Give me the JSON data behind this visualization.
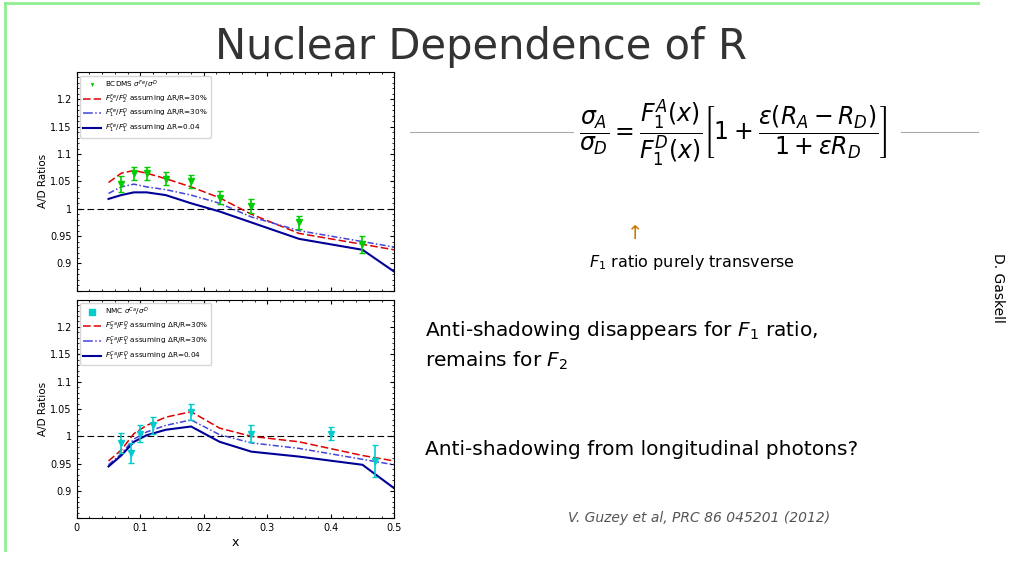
{
  "title": "Nuclear Dependence of R",
  "title_fontsize": 30,
  "background_color": "#ffffff",
  "border_color": "#90ee90",
  "bottom_bar_color": "#c8732a",
  "side_label": "D. Gaskell",
  "top_panel": {
    "ylabel": "A/D Ratios",
    "ylim": [
      0.85,
      1.25
    ],
    "yticks": [
      0.85,
      0.9,
      0.95,
      1.0,
      1.05,
      1.1,
      1.15,
      1.2
    ],
    "data_label": "BCDMS $\\sigma^{Fe}/\\sigma^{D}$",
    "line1_label": "$F_2^{Fe}/F_2^{D}$ assuming $\\Delta$R/R=30%",
    "line2_label": "$F_1^{Fe}/F_1^{D}$ assuming $\\Delta$R/R=30%",
    "line3_label": "$F_1^{Fe}/F_1^{D}$ assuming $\\Delta$R=0.04",
    "data_x": [
      0.07,
      0.09,
      0.11,
      0.14,
      0.18,
      0.225,
      0.275,
      0.35,
      0.45
    ],
    "data_y": [
      1.045,
      1.065,
      1.065,
      1.055,
      1.05,
      1.02,
      1.005,
      0.975,
      0.935
    ],
    "data_yerr": [
      0.015,
      0.012,
      0.012,
      0.012,
      0.012,
      0.012,
      0.012,
      0.012,
      0.015
    ],
    "line1_x": [
      0.05,
      0.07,
      0.09,
      0.11,
      0.14,
      0.18,
      0.225,
      0.275,
      0.35,
      0.45,
      0.5
    ],
    "line1_y": [
      1.048,
      1.065,
      1.07,
      1.065,
      1.055,
      1.04,
      1.02,
      0.99,
      0.955,
      0.935,
      0.925
    ],
    "line2_x": [
      0.05,
      0.07,
      0.09,
      0.11,
      0.14,
      0.18,
      0.225,
      0.275,
      0.35,
      0.45,
      0.5
    ],
    "line2_y": [
      1.028,
      1.04,
      1.045,
      1.04,
      1.035,
      1.025,
      1.01,
      0.985,
      0.96,
      0.94,
      0.93
    ],
    "line3_x": [
      0.05,
      0.07,
      0.09,
      0.11,
      0.14,
      0.18,
      0.225,
      0.275,
      0.35,
      0.45,
      0.5
    ],
    "line3_y": [
      1.018,
      1.025,
      1.03,
      1.03,
      1.025,
      1.01,
      0.995,
      0.975,
      0.945,
      0.925,
      0.885
    ],
    "marker_color": "#00cc00",
    "line1_color": "#dd0000",
    "line2_color": "#4444dd",
    "line3_color": "#000099"
  },
  "bottom_panel": {
    "ylabel": "A/D Ratios",
    "xlabel": "x",
    "ylim": [
      0.85,
      1.25
    ],
    "yticks": [
      0.85,
      0.9,
      0.95,
      1.0,
      1.05,
      1.1,
      1.15,
      1.2
    ],
    "data_label": "NMC $\\sigma^{Ca}/\\sigma^{D}$",
    "line1_label": "$F_2^{Ca}/F_2^{D}$ assuming $\\Delta$R/R=30%",
    "line2_label": "$F_1^{Ca}/F_1^{D}$ assuming $\\Delta$R/R=30%",
    "line3_label": "$F_1^{Ca}/F_1^{D}$ assuming $\\Delta$R=0.04",
    "data_x": [
      0.07,
      0.085,
      0.1,
      0.12,
      0.18,
      0.275,
      0.4,
      0.47
    ],
    "data_y": [
      0.988,
      0.97,
      1.005,
      1.02,
      1.045,
      1.005,
      1.005,
      0.955
    ],
    "data_yerr": [
      0.018,
      0.018,
      0.015,
      0.015,
      0.015,
      0.015,
      0.012,
      0.03
    ],
    "line1_x": [
      0.05,
      0.07,
      0.09,
      0.11,
      0.14,
      0.18,
      0.225,
      0.275,
      0.35,
      0.45,
      0.5
    ],
    "line1_y": [
      0.955,
      0.975,
      1.005,
      1.02,
      1.035,
      1.045,
      1.015,
      1.0,
      0.99,
      0.965,
      0.955
    ],
    "line2_x": [
      0.05,
      0.07,
      0.09,
      0.11,
      0.14,
      0.18,
      0.225,
      0.275,
      0.35,
      0.45,
      0.5
    ],
    "line2_y": [
      0.948,
      0.968,
      0.995,
      1.008,
      1.02,
      1.03,
      1.003,
      0.988,
      0.978,
      0.958,
      0.948
    ],
    "line3_x": [
      0.05,
      0.07,
      0.09,
      0.11,
      0.14,
      0.18,
      0.225,
      0.275,
      0.35,
      0.45,
      0.5
    ],
    "line3_y": [
      0.945,
      0.965,
      0.99,
      1.002,
      1.012,
      1.018,
      0.99,
      0.972,
      0.963,
      0.948,
      0.905
    ],
    "marker_color": "#00cccc",
    "line1_color": "#dd0000",
    "line2_color": "#4444dd",
    "line3_color": "#000099"
  },
  "annotation1": "$F_1$ ratio purely transverse",
  "annotation2": "Anti-shadowing disappears for $F_1$ ratio,\nremains for $F_2$",
  "annotation3": "Anti-shadowing from longitudinal photons?",
  "citation": "V. Guzey et al, PRC 86 045201 (2012)"
}
